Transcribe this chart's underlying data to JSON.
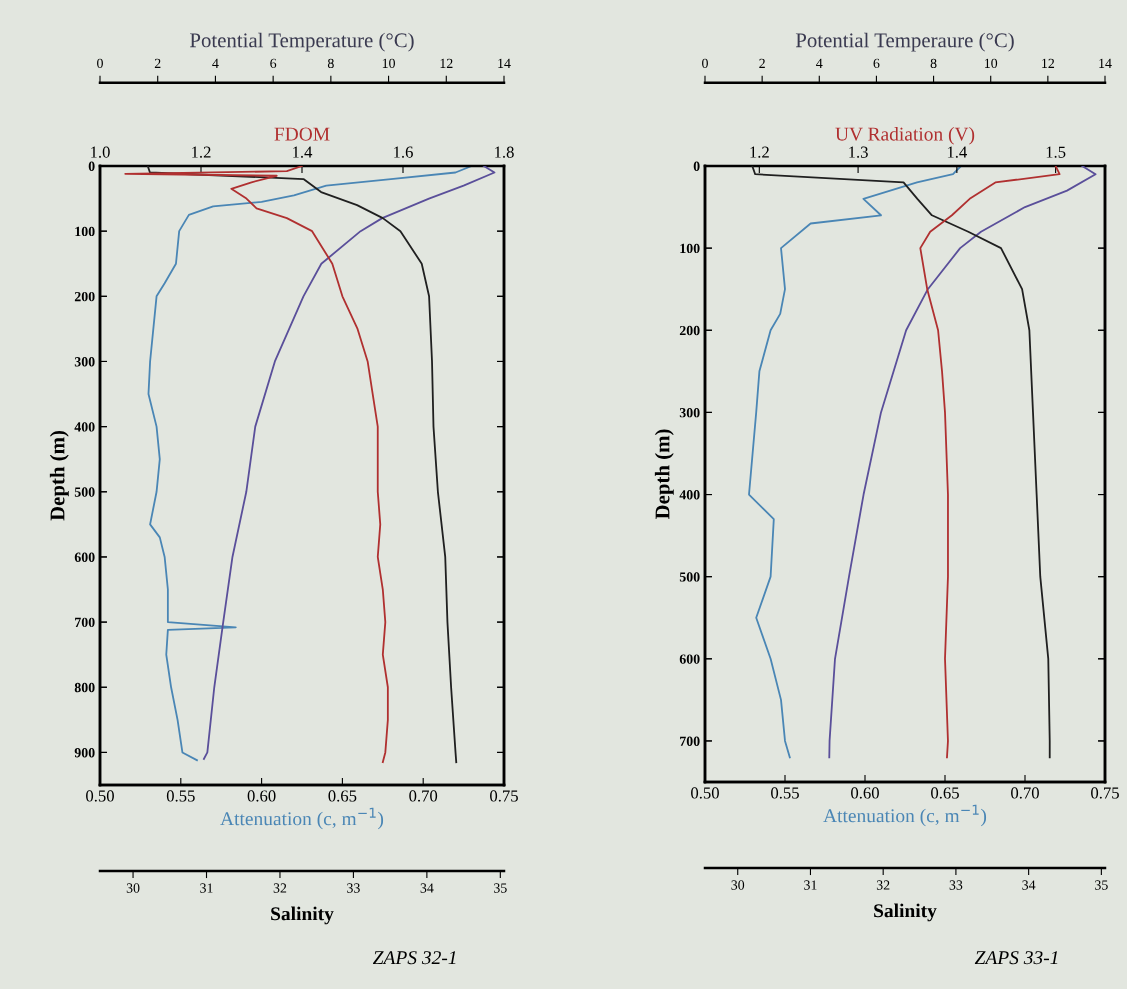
{
  "chart_data": [
    {
      "type": "line",
      "orientation": "horizontal",
      "ylabel": "Depth (m)",
      "ylim": [
        950,
        0
      ],
      "yticks": [
        0,
        100,
        200,
        300,
        400,
        500,
        600,
        700,
        800,
        900
      ],
      "xlabel": "Attenuation (c, m$^{−1}$)",
      "xlim": [
        0.5,
        0.75
      ],
      "xticks": [
        {
          "value": 0.5,
          "label": "0.50"
        },
        {
          "value": 0.55,
          "label": "0.55"
        },
        {
          "value": 0.6,
          "label": "0.60"
        },
        {
          "value": 0.65,
          "label": "0.65"
        },
        {
          "value": 0.7,
          "label": "0.70"
        },
        {
          "value": 0.75,
          "label": "0.75"
        }
      ],
      "x2label": "Potential Temperature (°C)",
      "x2lim": [
        0,
        14
      ],
      "x2ticks": [
        0,
        2,
        4,
        6,
        8,
        10,
        12,
        14
      ],
      "annotations": [
        "ZAPS 32-1"
      ],
      "series": [
        {
          "color": "#4a86b5",
          "x": [
            0,
            10,
            20,
            30,
            45,
            55,
            62,
            75,
            100,
            150,
            180,
            200,
            250,
            300,
            350,
            400,
            450,
            500,
            550,
            570,
            600,
            650,
            700,
            708,
            712,
            750,
            800,
            850,
            900,
            912
          ],
          "values": [
            0.73,
            0.72,
            0.68,
            0.64,
            0.62,
            0.6,
            0.57,
            0.555,
            0.549,
            0.547,
            0.54,
            0.535,
            0.533,
            0.531,
            0.53,
            0.535,
            0.537,
            0.535,
            0.531,
            0.537,
            0.54,
            0.542,
            0.542,
            0.584,
            0.542,
            0.541,
            0.544,
            0.548,
            0.551,
            0.56
          ]
        },
        {
          "axis": "x2",
          "color": "#5a4f9a",
          "x": [
            0,
            10,
            30,
            50,
            80,
            100,
            150,
            200,
            300,
            400,
            500,
            600,
            700,
            800,
            900,
            910
          ],
          "values": [
            13.3,
            13.67,
            12.6,
            11.4,
            9.78,
            9.03,
            7.67,
            7.05,
            6.06,
            5.38,
            5.07,
            4.59,
            4.27,
            3.96,
            3.72,
            3.6
          ]
        }
      ]
    },
    {
      "type": "line",
      "orientation": "horizontal",
      "tick_labels": "x",
      "ylim": [
        950,
        0
      ],
      "yticks": [
        0,
        100,
        200,
        300,
        400,
        500,
        600,
        700,
        800,
        900
      ],
      "xlabel": "Salinity",
      "xlim": [
        29.55,
        35.05
      ],
      "xticks": [
        30,
        31,
        32,
        33,
        34,
        35
      ],
      "x2label": "FDOM",
      "x2lim": [
        1.0,
        1.8
      ],
      "x2ticks": [
        {
          "value": 1.0,
          "label": "1.0"
        },
        {
          "value": 1.2,
          "label": "1.2"
        },
        {
          "value": 1.4,
          "label": "1.4"
        },
        {
          "value": 1.6,
          "label": "1.6"
        },
        {
          "value": 1.8,
          "label": "1.8"
        }
      ],
      "series": [
        {
          "axis": "x2",
          "color": "#b03030",
          "x": [
            0,
            8,
            12,
            15,
            25,
            35,
            50,
            65,
            80,
            100,
            125,
            150,
            175,
            200,
            250,
            300,
            350,
            400,
            450,
            500,
            550,
            600,
            650,
            700,
            750,
            800,
            850,
            900,
            915
          ],
          "values": [
            1.4,
            1.37,
            1.05,
            1.35,
            1.3,
            1.26,
            1.29,
            1.31,
            1.37,
            1.42,
            1.44,
            1.46,
            1.47,
            1.48,
            1.51,
            1.53,
            1.54,
            1.55,
            1.55,
            1.55,
            1.555,
            1.55,
            1.56,
            1.565,
            1.56,
            1.57,
            1.57,
            1.565,
            1.56
          ]
        },
        {
          "color": "#202020",
          "x": [
            0,
            10,
            20,
            40,
            60,
            80,
            100,
            150,
            200,
            300,
            400,
            500,
            600,
            700,
            800,
            900,
            915
          ],
          "values": [
            30.2,
            30.23,
            32.32,
            32.56,
            33.05,
            33.4,
            33.64,
            33.93,
            34.03,
            34.07,
            34.09,
            34.15,
            34.25,
            34.28,
            34.33,
            34.39,
            34.4
          ]
        }
      ]
    },
    {
      "type": "line",
      "orientation": "horizontal",
      "ylabel": "Depth (m)",
      "ylim": [
        750,
        0
      ],
      "yticks": [
        0,
        100,
        200,
        300,
        400,
        500,
        600,
        700
      ],
      "xlabel": "Attenuation (c, m$^{−1}$)",
      "xlim": [
        0.5,
        0.75
      ],
      "xticks": [
        {
          "value": 0.5,
          "label": "0.50"
        },
        {
          "value": 0.55,
          "label": "0.55"
        },
        {
          "value": 0.6,
          "label": "0.60"
        },
        {
          "value": 0.65,
          "label": "0.65"
        },
        {
          "value": 0.7,
          "label": "0.70"
        },
        {
          "value": 0.75,
          "label": "0.75"
        }
      ],
      "x2label": "Potential Temperaure (°C)",
      "x2lim": [
        0,
        14
      ],
      "x2ticks": [
        0,
        2,
        4,
        6,
        8,
        10,
        12,
        14
      ],
      "annotations": [
        "ZAPS 33-1"
      ],
      "series": [
        {
          "color": "#4a86b5",
          "x": [
            0,
            10,
            20,
            40,
            60,
            70,
            100,
            150,
            180,
            200,
            250,
            300,
            400,
            430,
            500,
            550,
            600,
            650,
            700,
            720
          ],
          "values": [
            0.66,
            0.655,
            0.6325,
            0.599,
            0.61,
            0.566,
            0.5475,
            0.55,
            0.547,
            0.541,
            0.534,
            0.532,
            0.5275,
            0.543,
            0.541,
            0.532,
            0.541,
            0.5475,
            0.55,
            0.553
          ]
        },
        {
          "axis": "x2",
          "color": "#5a4f9a",
          "x": [
            0,
            10,
            30,
            50,
            80,
            100,
            150,
            200,
            300,
            400,
            500,
            600,
            700,
            720
          ],
          "values": [
            13.2,
            13.67,
            12.67,
            11.2,
            9.66,
            8.93,
            7.8,
            7.04,
            6.16,
            5.55,
            5.04,
            4.55,
            4.36,
            4.35
          ]
        }
      ]
    },
    {
      "type": "line",
      "orientation": "horizontal",
      "tick_labels": "x",
      "ylim": [
        750,
        0
      ],
      "yticks": [
        0,
        100,
        200,
        300,
        400,
        500,
        600,
        700
      ],
      "xlabel": "Salinity",
      "xlim": [
        29.55,
        35.05
      ],
      "xticks": [
        30,
        31,
        32,
        33,
        34,
        35
      ],
      "x2label": "UV Radiation (V)",
      "x2lim": [
        1.145,
        1.55
      ],
      "x2ticks": [
        1.2,
        1.3,
        1.4,
        1.5
      ],
      "series": [
        {
          "axis": "x2",
          "color": "#b03030",
          "x": [
            0,
            10,
            20,
            40,
            60,
            80,
            100,
            150,
            200,
            250,
            300,
            400,
            500,
            600,
            700,
            720
          ],
          "values": [
            1.5,
            1.504,
            1.439,
            1.413,
            1.395,
            1.373,
            1.363,
            1.37,
            1.381,
            1.385,
            1.388,
            1.391,
            1.391,
            1.388,
            1.391,
            1.39
          ]
        },
        {
          "color": "#202020",
          "x": [
            0,
            10,
            20,
            40,
            60,
            80,
            100,
            150,
            200,
            300,
            400,
            500,
            600,
            700,
            720
          ],
          "values": [
            30.2,
            30.24,
            32.28,
            32.47,
            32.67,
            33.17,
            33.62,
            33.91,
            34.01,
            34.06,
            34.11,
            34.16,
            34.27,
            34.29,
            34.29
          ]
        }
      ]
    }
  ]
}
